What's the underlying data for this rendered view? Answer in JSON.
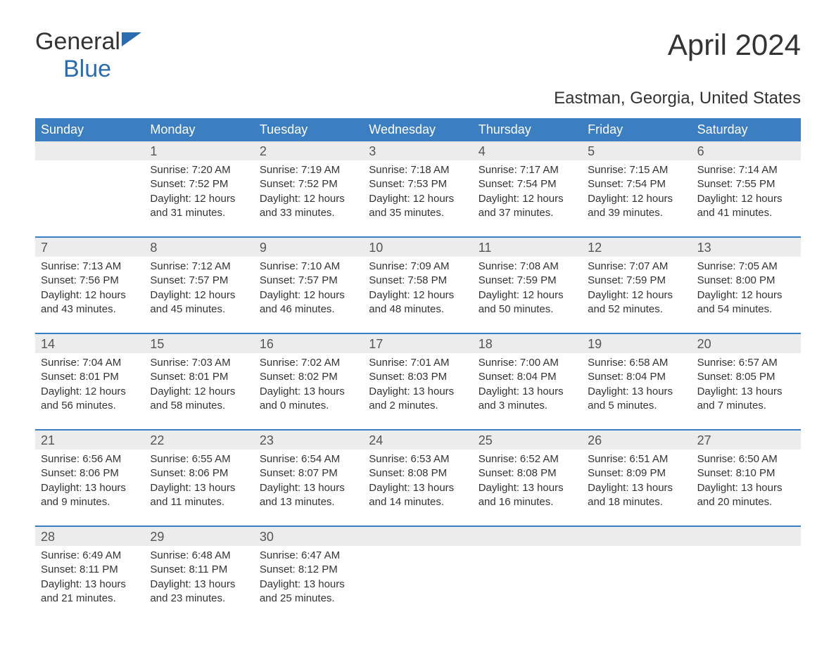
{
  "logo": {
    "part1": "General",
    "part2": "Blue"
  },
  "title": "April 2024",
  "location": "Eastman, Georgia, United States",
  "colors": {
    "header_bg": "#3b7ec2",
    "header_text": "#ffffff",
    "daynum_bg": "#ececec",
    "border": "#3b7ec2",
    "text": "#333333",
    "logo_blue": "#2a6cb0"
  },
  "day_names": [
    "Sunday",
    "Monday",
    "Tuesday",
    "Wednesday",
    "Thursday",
    "Friday",
    "Saturday"
  ],
  "weeks": [
    [
      {
        "num": "",
        "sunrise": "",
        "sunset": "",
        "daylight": ""
      },
      {
        "num": "1",
        "sunrise": "Sunrise: 7:20 AM",
        "sunset": "Sunset: 7:52 PM",
        "daylight": "Daylight: 12 hours and 31 minutes."
      },
      {
        "num": "2",
        "sunrise": "Sunrise: 7:19 AM",
        "sunset": "Sunset: 7:52 PM",
        "daylight": "Daylight: 12 hours and 33 minutes."
      },
      {
        "num": "3",
        "sunrise": "Sunrise: 7:18 AM",
        "sunset": "Sunset: 7:53 PM",
        "daylight": "Daylight: 12 hours and 35 minutes."
      },
      {
        "num": "4",
        "sunrise": "Sunrise: 7:17 AM",
        "sunset": "Sunset: 7:54 PM",
        "daylight": "Daylight: 12 hours and 37 minutes."
      },
      {
        "num": "5",
        "sunrise": "Sunrise: 7:15 AM",
        "sunset": "Sunset: 7:54 PM",
        "daylight": "Daylight: 12 hours and 39 minutes."
      },
      {
        "num": "6",
        "sunrise": "Sunrise: 7:14 AM",
        "sunset": "Sunset: 7:55 PM",
        "daylight": "Daylight: 12 hours and 41 minutes."
      }
    ],
    [
      {
        "num": "7",
        "sunrise": "Sunrise: 7:13 AM",
        "sunset": "Sunset: 7:56 PM",
        "daylight": "Daylight: 12 hours and 43 minutes."
      },
      {
        "num": "8",
        "sunrise": "Sunrise: 7:12 AM",
        "sunset": "Sunset: 7:57 PM",
        "daylight": "Daylight: 12 hours and 45 minutes."
      },
      {
        "num": "9",
        "sunrise": "Sunrise: 7:10 AM",
        "sunset": "Sunset: 7:57 PM",
        "daylight": "Daylight: 12 hours and 46 minutes."
      },
      {
        "num": "10",
        "sunrise": "Sunrise: 7:09 AM",
        "sunset": "Sunset: 7:58 PM",
        "daylight": "Daylight: 12 hours and 48 minutes."
      },
      {
        "num": "11",
        "sunrise": "Sunrise: 7:08 AM",
        "sunset": "Sunset: 7:59 PM",
        "daylight": "Daylight: 12 hours and 50 minutes."
      },
      {
        "num": "12",
        "sunrise": "Sunrise: 7:07 AM",
        "sunset": "Sunset: 7:59 PM",
        "daylight": "Daylight: 12 hours and 52 minutes."
      },
      {
        "num": "13",
        "sunrise": "Sunrise: 7:05 AM",
        "sunset": "Sunset: 8:00 PM",
        "daylight": "Daylight: 12 hours and 54 minutes."
      }
    ],
    [
      {
        "num": "14",
        "sunrise": "Sunrise: 7:04 AM",
        "sunset": "Sunset: 8:01 PM",
        "daylight": "Daylight: 12 hours and 56 minutes."
      },
      {
        "num": "15",
        "sunrise": "Sunrise: 7:03 AM",
        "sunset": "Sunset: 8:01 PM",
        "daylight": "Daylight: 12 hours and 58 minutes."
      },
      {
        "num": "16",
        "sunrise": "Sunrise: 7:02 AM",
        "sunset": "Sunset: 8:02 PM",
        "daylight": "Daylight: 13 hours and 0 minutes."
      },
      {
        "num": "17",
        "sunrise": "Sunrise: 7:01 AM",
        "sunset": "Sunset: 8:03 PM",
        "daylight": "Daylight: 13 hours and 2 minutes."
      },
      {
        "num": "18",
        "sunrise": "Sunrise: 7:00 AM",
        "sunset": "Sunset: 8:04 PM",
        "daylight": "Daylight: 13 hours and 3 minutes."
      },
      {
        "num": "19",
        "sunrise": "Sunrise: 6:58 AM",
        "sunset": "Sunset: 8:04 PM",
        "daylight": "Daylight: 13 hours and 5 minutes."
      },
      {
        "num": "20",
        "sunrise": "Sunrise: 6:57 AM",
        "sunset": "Sunset: 8:05 PM",
        "daylight": "Daylight: 13 hours and 7 minutes."
      }
    ],
    [
      {
        "num": "21",
        "sunrise": "Sunrise: 6:56 AM",
        "sunset": "Sunset: 8:06 PM",
        "daylight": "Daylight: 13 hours and 9 minutes."
      },
      {
        "num": "22",
        "sunrise": "Sunrise: 6:55 AM",
        "sunset": "Sunset: 8:06 PM",
        "daylight": "Daylight: 13 hours and 11 minutes."
      },
      {
        "num": "23",
        "sunrise": "Sunrise: 6:54 AM",
        "sunset": "Sunset: 8:07 PM",
        "daylight": "Daylight: 13 hours and 13 minutes."
      },
      {
        "num": "24",
        "sunrise": "Sunrise: 6:53 AM",
        "sunset": "Sunset: 8:08 PM",
        "daylight": "Daylight: 13 hours and 14 minutes."
      },
      {
        "num": "25",
        "sunrise": "Sunrise: 6:52 AM",
        "sunset": "Sunset: 8:08 PM",
        "daylight": "Daylight: 13 hours and 16 minutes."
      },
      {
        "num": "26",
        "sunrise": "Sunrise: 6:51 AM",
        "sunset": "Sunset: 8:09 PM",
        "daylight": "Daylight: 13 hours and 18 minutes."
      },
      {
        "num": "27",
        "sunrise": "Sunrise: 6:50 AM",
        "sunset": "Sunset: 8:10 PM",
        "daylight": "Daylight: 13 hours and 20 minutes."
      }
    ],
    [
      {
        "num": "28",
        "sunrise": "Sunrise: 6:49 AM",
        "sunset": "Sunset: 8:11 PM",
        "daylight": "Daylight: 13 hours and 21 minutes."
      },
      {
        "num": "29",
        "sunrise": "Sunrise: 6:48 AM",
        "sunset": "Sunset: 8:11 PM",
        "daylight": "Daylight: 13 hours and 23 minutes."
      },
      {
        "num": "30",
        "sunrise": "Sunrise: 6:47 AM",
        "sunset": "Sunset: 8:12 PM",
        "daylight": "Daylight: 13 hours and 25 minutes."
      },
      {
        "num": "",
        "sunrise": "",
        "sunset": "",
        "daylight": ""
      },
      {
        "num": "",
        "sunrise": "",
        "sunset": "",
        "daylight": ""
      },
      {
        "num": "",
        "sunrise": "",
        "sunset": "",
        "daylight": ""
      },
      {
        "num": "",
        "sunrise": "",
        "sunset": "",
        "daylight": ""
      }
    ]
  ]
}
